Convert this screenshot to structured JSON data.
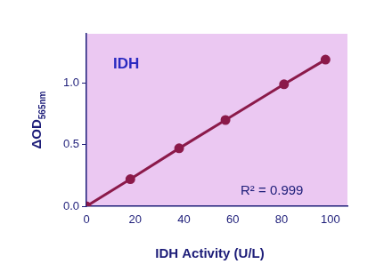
{
  "chart_data": {
    "type": "line",
    "title": "IDH",
    "x_label": "IDH Activity (U/L)",
    "y_label": "ΔOD565nm",
    "annotation": "R² = 0.999",
    "x": [
      0,
      18,
      38,
      57,
      81,
      98
    ],
    "values": [
      0,
      0.22,
      0.47,
      0.7,
      0.99,
      1.19
    ],
    "color": "#8b1a4a",
    "marker": "circle",
    "line_style": "solid",
    "xlim": [
      0,
      107
    ],
    "xticks": [
      0,
      20,
      40,
      60,
      80,
      100
    ],
    "ylim": [
      0,
      1.4
    ],
    "yticks": [
      {
        "value": 0,
        "label": "0.0"
      },
      {
        "value": 0.5,
        "label": "0.5"
      },
      {
        "value": 1,
        "label": "1.0"
      }
    ],
    "grid": false
  }
}
